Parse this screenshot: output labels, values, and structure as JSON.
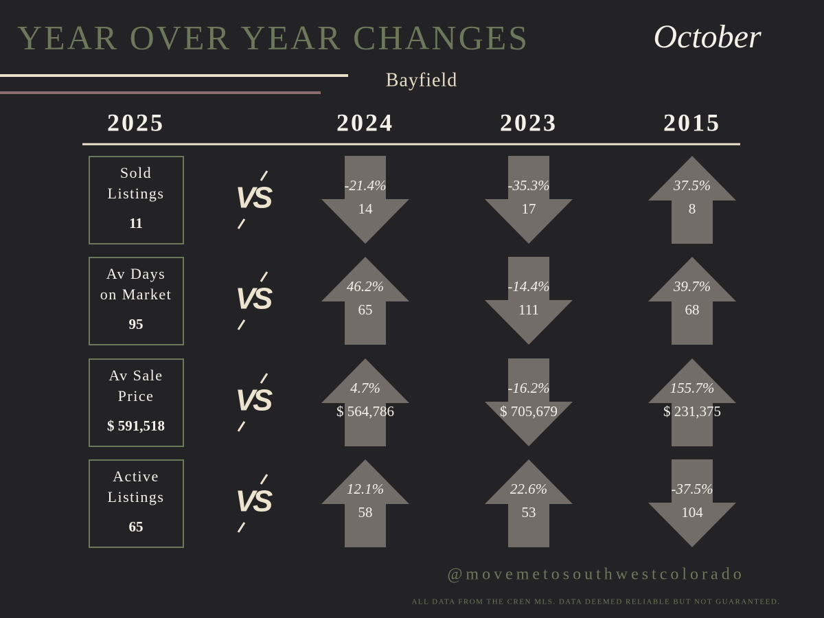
{
  "header": {
    "title": "YEAR OVER YEAR CHANGES",
    "month": "October",
    "location": "Bayfield"
  },
  "years": [
    "2025",
    "2024",
    "2023",
    "2015"
  ],
  "vs_label": "VS",
  "rows": [
    {
      "label": [
        "Sold",
        "Listings"
      ],
      "value": "11",
      "comparisons": [
        {
          "change": "-21.4%",
          "value": "14",
          "direction": "down"
        },
        {
          "change": "-35.3%",
          "value": "17",
          "direction": "down"
        },
        {
          "change": "37.5%",
          "value": "8",
          "direction": "up"
        }
      ]
    },
    {
      "label": [
        "Av Days",
        "on Market"
      ],
      "value": "95",
      "comparisons": [
        {
          "change": "46.2%",
          "value": "65",
          "direction": "up"
        },
        {
          "change": "-14.4%",
          "value": "111",
          "direction": "down"
        },
        {
          "change": "39.7%",
          "value": "68",
          "direction": "up"
        }
      ]
    },
    {
      "label": [
        "Av Sale",
        "Price"
      ],
      "value": "$ 591,518",
      "comparisons": [
        {
          "change": "4.7%",
          "value": "$ 564,786",
          "direction": "up"
        },
        {
          "change": "-16.2%",
          "value": "$ 705,679",
          "direction": "down"
        },
        {
          "change": "155.7%",
          "value": "$ 231,375",
          "direction": "up"
        }
      ]
    },
    {
      "label": [
        "Active",
        "Listings"
      ],
      "value": "65",
      "comparisons": [
        {
          "change": "12.1%",
          "value": "58",
          "direction": "up"
        },
        {
          "change": "22.6%",
          "value": "53",
          "direction": "up"
        },
        {
          "change": "-37.5%",
          "value": "104",
          "direction": "down"
        }
      ]
    }
  ],
  "footer": {
    "handle": "@movemetosouthwestcolorado",
    "disclaimer": "ALL DATA FROM THE CREN MLS. DATA DEEMED RELIABLE BUT NOT GUARANTEED."
  }
}
